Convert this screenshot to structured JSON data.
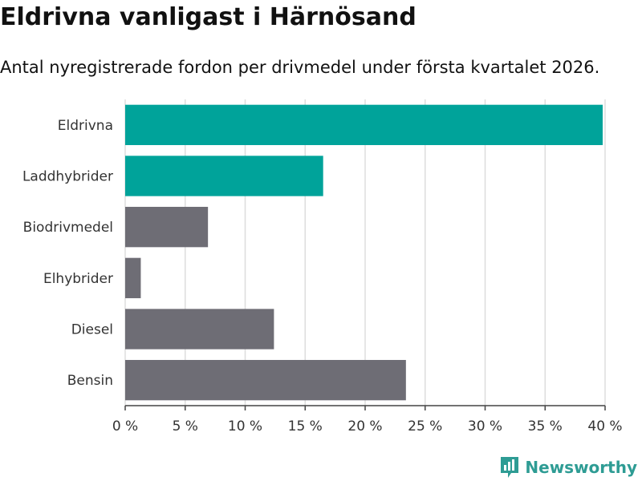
{
  "header": {
    "title": "Eldrivna vanligast i Härnösand",
    "subtitle": "Antal nyregistrerade fordon per drivmedel under första kvartalet 2026."
  },
  "brand": {
    "name": "Newsworthy",
    "icon": "newsworthy-logo-icon",
    "color": "#2e9c94"
  },
  "chart_data": {
    "type": "bar",
    "orientation": "horizontal",
    "categories": [
      "Eldrivna",
      "Laddhybrider",
      "Biodrivmedel",
      "Elhybrider",
      "Diesel",
      "Bensin"
    ],
    "values": [
      39.8,
      16.5,
      6.9,
      1.3,
      12.4,
      23.4
    ],
    "colors": [
      "#00a39a",
      "#00a39a",
      "#6e6d75",
      "#6e6d75",
      "#6e6d75",
      "#6e6d75"
    ],
    "xlim": [
      0,
      40
    ],
    "xticks": [
      0,
      5,
      10,
      15,
      20,
      25,
      30,
      35,
      40
    ],
    "xtick_labels": [
      "0 %",
      "5 %",
      "10 %",
      "15 %",
      "20 %",
      "25 %",
      "30 %",
      "35 %",
      "40 %"
    ],
    "grid": true,
    "legend": "none"
  }
}
